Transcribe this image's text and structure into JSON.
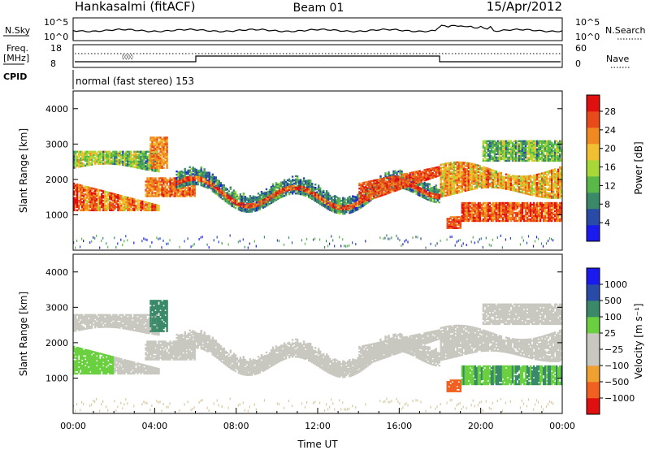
{
  "header": {
    "station": "Hankasalmi (fitACF)",
    "beam": "Beam 01",
    "date": "15/Apr/2012"
  },
  "top_panels": {
    "nsky_label": "N.Sky",
    "nsearch_label": "N.Search",
    "sky_tick_top": "10^5",
    "sky_tick_bot": "10^0",
    "freq_label_1": "Freq.",
    "freq_label_2": "[MHz]",
    "freq_tick_top": "18",
    "freq_tick_bot": "8",
    "nave_label": "Nave",
    "nave_tick_top": "60",
    "nave_tick_bot": "0",
    "cpid_label": "CPID",
    "cpid_text": "normal (fast stereo) 153"
  },
  "colors": {
    "power": [
      "#1a1aee",
      "#2a4aa8",
      "#3a8a6a",
      "#5ab848",
      "#a8d838",
      "#f0c030",
      "#f08a20",
      "#e84a1a",
      "#e01010"
    ],
    "velocity": [
      "#e01010",
      "#f06020",
      "#f0a030",
      "#c8c8c0",
      "#c8c8c0",
      "#6ad040",
      "#3a8a6a",
      "#2a4aa8",
      "#1a1aee"
    ]
  },
  "chart_data": [
    {
      "type": "heatmap",
      "title": "Power",
      "ylabel": "Slant Range [km]",
      "yticks": [
        "1000",
        "2000",
        "3000",
        "4000"
      ],
      "ylim": [
        0,
        4500
      ],
      "colorbar_label": "Power [dB]",
      "colorbar_ticks": [
        "4",
        "8",
        "12",
        "16",
        "20",
        "24",
        "28"
      ],
      "colorbar_range": [
        0,
        31.5
      ]
    },
    {
      "type": "heatmap",
      "title": "Velocity",
      "ylabel": "Slant Range [km]",
      "yticks": [
        "1000",
        "2000",
        "3000",
        "4000"
      ],
      "ylim": [
        0,
        4500
      ],
      "colorbar_label": "Velocity [m s⁻¹]",
      "colorbar_ticks": [
        "1000",
        "500",
        "100",
        "25",
        "−25",
        "−100",
        "−500",
        "−1000"
      ],
      "xlabel": "Time UT",
      "xticks": [
        "00:00",
        "04:00",
        "08:00",
        "12:00",
        "16:00",
        "20:00",
        "00:00"
      ],
      "xlim_hours": [
        0,
        24
      ]
    }
  ]
}
